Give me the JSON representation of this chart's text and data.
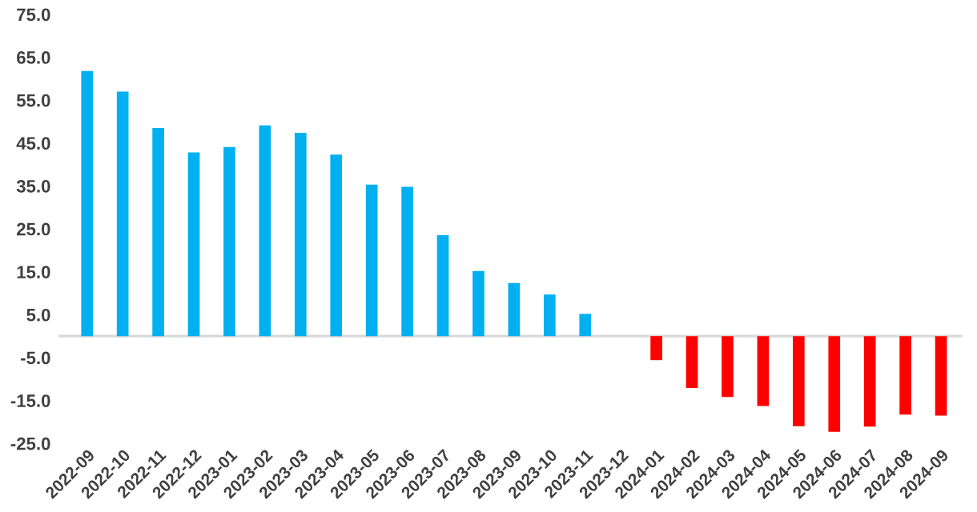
{
  "chart_data": {
    "type": "bar",
    "categories": [
      "2022-09",
      "2022-10",
      "2022-11",
      "2022-12",
      "2023-01",
      "2023-02",
      "2023-03",
      "2023-04",
      "2023-05",
      "2023-06",
      "2023-07",
      "2023-08",
      "2023-09",
      "2023-10",
      "2023-11",
      "2023-12",
      "2024-01",
      "2024-02",
      "2024-03",
      "2024-04",
      "2024-05",
      "2024-06",
      "2024-07",
      "2024-08",
      "2024-09"
    ],
    "values": [
      61.8,
      57.0,
      48.5,
      42.8,
      44.1,
      49.1,
      47.4,
      42.3,
      35.3,
      34.8,
      23.5,
      15.2,
      12.4,
      9.7,
      5.2,
      null,
      -5.6,
      -12.1,
      -14.2,
      -16.3,
      -21.0,
      -22.3,
      -21.1,
      -18.3,
      -18.5
    ],
    "colors": [
      "#00b0f0",
      "#00b0f0",
      "#00b0f0",
      "#00b0f0",
      "#00b0f0",
      "#00b0f0",
      "#00b0f0",
      "#00b0f0",
      "#00b0f0",
      "#00b0f0",
      "#00b0f0",
      "#00b0f0",
      "#00b0f0",
      "#00b0f0",
      "#00b0f0",
      "#00b0f0",
      "#ff0000",
      "#ff0000",
      "#ff0000",
      "#ff0000",
      "#ff0000",
      "#ff0000",
      "#ff0000",
      "#ff0000",
      "#ff0000"
    ],
    "ylim": [
      -25,
      75
    ],
    "yticks": [
      {
        "value": 75,
        "label": "75.0"
      },
      {
        "value": 65,
        "label": "65.0"
      },
      {
        "value": 55,
        "label": "55.0"
      },
      {
        "value": 45,
        "label": "45.0"
      },
      {
        "value": 35,
        "label": "35.0"
      },
      {
        "value": 25,
        "label": "25.0"
      },
      {
        "value": 15,
        "label": "15.0"
      },
      {
        "value": 5,
        "label": "5.0"
      },
      {
        "value": -5,
        "label": "-5.0"
      },
      {
        "value": -15,
        "label": "-15.0"
      },
      {
        "value": -25,
        "label": "-25.0"
      }
    ],
    "grid": false,
    "legend": false
  }
}
